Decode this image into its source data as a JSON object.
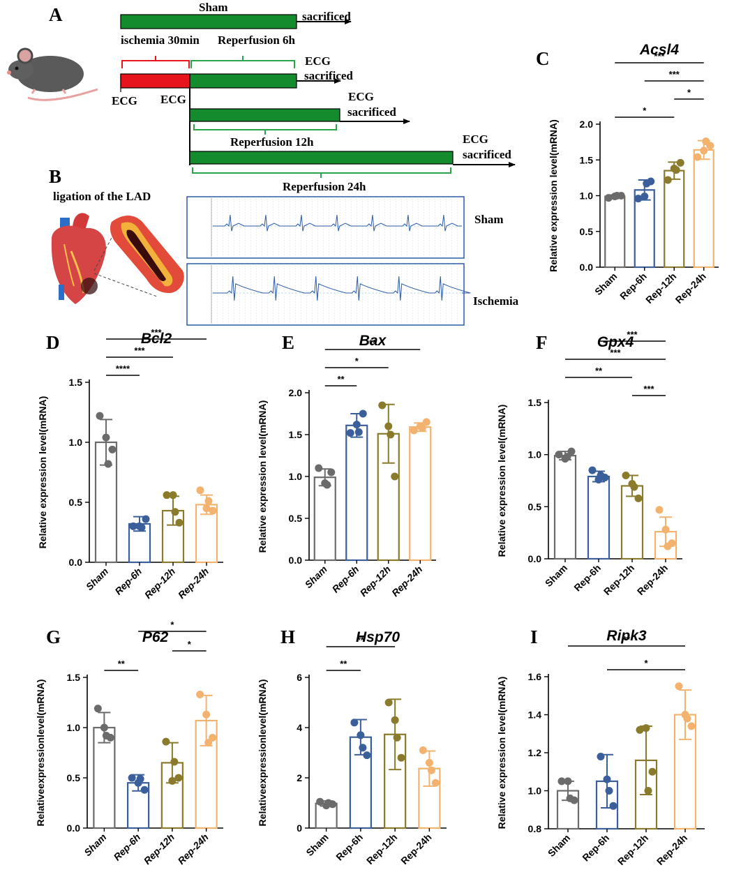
{
  "panel_labels": {
    "A": "A",
    "B": "B",
    "C": "C",
    "D": "D",
    "E": "E",
    "F": "F",
    "G": "G",
    "H": "H",
    "I": "I"
  },
  "schematic": {
    "sham": "Sham",
    "sacrificed": "sacrificed",
    "ischemia": "ischemia 30min",
    "rep6": "Reperfusion 6h",
    "ecg": "ECG",
    "rep12": "Reperfusion 12h",
    "rep24": "Reperfusion 24h",
    "ligation": "ligation of the LAD",
    "ecg_sham": "Sham",
    "ecg_ischemia": "Ischemia",
    "colors": {
      "red": "#e8141c",
      "green": "#148c2e",
      "ecg_line": "#2b5aa8",
      "grid": "#8fc6dd"
    }
  },
  "group_colors": [
    "#6b6b6b",
    "#3a5f9a",
    "#8a7a2c",
    "#f3b36f"
  ],
  "chart_data": [
    {
      "id": "C",
      "type": "bar",
      "title": "Acsl4",
      "categories": [
        "Sham",
        "Rep-6h",
        "Rep-12h",
        "Rep-24h"
      ],
      "values": [
        0.99,
        1.08,
        1.35,
        1.64
      ],
      "errors": [
        0.02,
        0.14,
        0.12,
        0.13
      ],
      "points": [
        [
          0.97,
          0.99,
          1.0,
          1.0
        ],
        [
          0.96,
          0.99,
          1.2,
          1.17
        ],
        [
          1.22,
          1.38,
          1.46,
          1.36
        ],
        [
          1.54,
          1.63,
          1.7,
          1.76
        ]
      ],
      "ylabel": "Relative expression level(mRNA)",
      "ylim": [
        0,
        2.0
      ],
      "yticks": [
        "0.0",
        "0.5",
        "1.0",
        "1.5",
        "2.0"
      ],
      "xtick_italic": false,
      "significance": [
        {
          "from": 0,
          "to": 2,
          "label": "*"
        },
        {
          "from": 2,
          "to": 3,
          "label": "*"
        },
        {
          "from": 1,
          "to": 3,
          "label": "***"
        },
        {
          "from": 0,
          "to": 3,
          "label": "***"
        }
      ]
    },
    {
      "id": "D",
      "type": "bar",
      "title": "Bcl2",
      "categories": [
        "Sham",
        "Rep-6h",
        "Rep-12h",
        "Rep-24h"
      ],
      "values": [
        1.0,
        0.32,
        0.43,
        0.48
      ],
      "errors": [
        0.19,
        0.06,
        0.12,
        0.08
      ],
      "points": [
        [
          1.22,
          1.04,
          0.94,
          0.82
        ],
        [
          0.3,
          0.3,
          0.36,
          0.29
        ],
        [
          0.56,
          0.56,
          0.33,
          0.42
        ],
        [
          0.6,
          0.45,
          0.43,
          0.51
        ]
      ],
      "ylabel": "Relative expression level(mRNA)",
      "ylim": [
        0,
        1.5
      ],
      "yticks": [
        "0.0",
        "0.5",
        "1.0",
        "1.5"
      ],
      "xtick_italic": true,
      "significance": [
        {
          "from": 0,
          "to": 1,
          "label": "****"
        },
        {
          "from": 0,
          "to": 2,
          "label": "***"
        },
        {
          "from": 0,
          "to": 3,
          "label": "***"
        }
      ]
    },
    {
      "id": "E",
      "type": "bar",
      "title": "Bax",
      "categories": [
        "Sham",
        "Rep-6h",
        "Rep-12h",
        "Rep-24h"
      ],
      "values": [
        0.99,
        1.61,
        1.51,
        1.59
      ],
      "errors": [
        0.1,
        0.14,
        0.35,
        0.05
      ],
      "points": [
        [
          1.1,
          0.92,
          1.05,
          0.9
        ],
        [
          1.52,
          1.62,
          1.75,
          1.53
        ],
        [
          1.85,
          1.6,
          1.0,
          1.5
        ],
        [
          1.55,
          1.6,
          1.65,
          1.58
        ]
      ],
      "ylabel": "Relative  expression  level(mRNA)",
      "ylim": [
        0,
        2.0
      ],
      "yticks": [
        "0.0",
        "0.5",
        "1.0",
        "1.5",
        "2.0"
      ],
      "xtick_italic": true,
      "significance": [
        {
          "from": 0,
          "to": 1,
          "label": "**"
        },
        {
          "from": 0,
          "to": 2,
          "label": "*"
        },
        {
          "from": 0,
          "to": 3,
          "label": "**"
        }
      ]
    },
    {
      "id": "F",
      "type": "bar",
      "title": "Gpx4",
      "categories": [
        "Sham",
        "Rep-6h",
        "Rep-12h",
        "Rep-24h"
      ],
      "values": [
        0.99,
        0.79,
        0.7,
        0.26
      ],
      "errors": [
        0.04,
        0.05,
        0.1,
        0.14
      ],
      "points": [
        [
          1.0,
          0.96,
          1.03,
          0.98
        ],
        [
          0.85,
          0.76,
          0.78,
          0.8
        ],
        [
          0.8,
          0.72,
          0.58,
          0.69
        ],
        [
          0.47,
          0.28,
          0.15,
          0.12
        ]
      ],
      "ylabel": "Relative expression level(mRNA)",
      "ylim": [
        0,
        1.5
      ],
      "yticks": [
        "0.0",
        "0.5",
        "1.0",
        "1.5"
      ],
      "xtick_italic": false,
      "significance": [
        {
          "from": 2,
          "to": 3,
          "label": "***"
        },
        {
          "from": 0,
          "to": 2,
          "label": "**"
        },
        {
          "from": 0,
          "to": 3,
          "label": "***"
        },
        {
          "from": 1,
          "to": 3,
          "label": "***"
        }
      ]
    },
    {
      "id": "G",
      "type": "bar",
      "title": "P62",
      "categories": [
        "Sham",
        "Rep-6h",
        "Rep-12h",
        "Rep-24h"
      ],
      "values": [
        1.0,
        0.45,
        0.65,
        1.07
      ],
      "errors": [
        0.15,
        0.08,
        0.2,
        0.25
      ],
      "points": [
        [
          1.19,
          1.0,
          0.9,
          0.92
        ],
        [
          0.5,
          0.45,
          0.38,
          0.49
        ],
        [
          0.86,
          0.47,
          0.5,
          0.66
        ],
        [
          1.33,
          1.13,
          0.9,
          0.85
        ]
      ],
      "ylabel": "Relativeexpressionlevel(mRNA)",
      "ylim": [
        0,
        1.5
      ],
      "yticks": [
        "0.0",
        "0.5",
        "1.0",
        "1.5"
      ],
      "xtick_italic": true,
      "significance": [
        {
          "from": 0,
          "to": 1,
          "label": "**"
        },
        {
          "from": 2,
          "to": 3,
          "label": "*"
        },
        {
          "from": 1,
          "to": 3,
          "label": "*"
        }
      ]
    },
    {
      "id": "H",
      "type": "bar",
      "title": "Hsp70",
      "categories": [
        "Sham",
        "Rep-6h",
        "Rep-12h",
        "Rep-24h"
      ],
      "values": [
        0.98,
        3.62,
        3.73,
        2.37
      ],
      "errors": [
        0.1,
        0.7,
        1.4,
        0.7
      ],
      "points": [
        [
          1.05,
          0.9,
          0.95,
          1.0
        ],
        [
          4.2,
          3.7,
          2.9,
          3.2
        ],
        [
          5.0,
          4.3,
          2.8,
          3.6
        ],
        [
          3.1,
          2.6,
          1.8,
          2.3
        ]
      ],
      "ylabel": "Relativeexpressionlevel(mRNA)",
      "ylim": [
        0,
        6
      ],
      "yticks": [
        "0",
        "2",
        "4",
        "6"
      ],
      "xtick_italic": false,
      "significance": [
        {
          "from": 0,
          "to": 1,
          "label": "**"
        },
        {
          "from": 0,
          "to": 2,
          "label": "**"
        }
      ]
    },
    {
      "id": "I",
      "type": "bar",
      "title": "Ripk3",
      "categories": [
        "Sham",
        "Rep-6h",
        "Rep-12h",
        "Rep-24h"
      ],
      "values": [
        1.0,
        1.05,
        1.16,
        1.4
      ],
      "errors": [
        0.05,
        0.14,
        0.18,
        0.13
      ],
      "points": [
        [
          1.05,
          1.05,
          0.95,
          0.96
        ],
        [
          1.18,
          1.06,
          0.92,
          1.0
        ],
        [
          1.32,
          1.33,
          1.1,
          1.0
        ],
        [
          1.55,
          1.4,
          1.34,
          1.38
        ]
      ],
      "ylabel": "Relative expression level(mRNA)",
      "ylim": [
        0.8,
        1.6
      ],
      "yticks": [
        "0.8",
        "1.0",
        "1.2",
        "1.4",
        "1.6"
      ],
      "xtick_italic": false,
      "significance": [
        {
          "from": 1,
          "to": 3,
          "label": "*"
        },
        {
          "from": 0,
          "to": 3,
          "label": "**"
        }
      ]
    }
  ]
}
